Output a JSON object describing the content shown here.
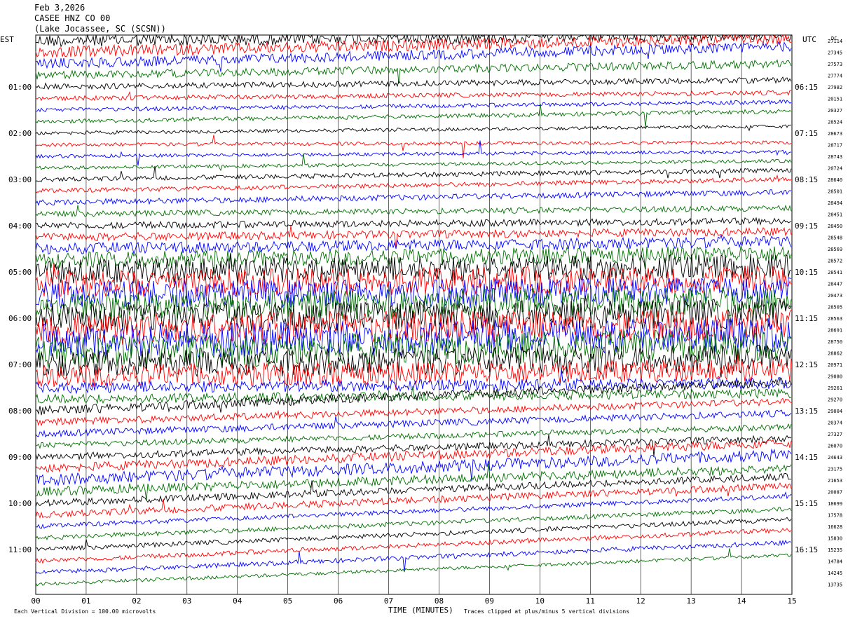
{
  "header": {
    "date": "Feb 3,2026",
    "station": "CASEE HNZ CO 00",
    "location": "(Lake Jocassee, SC (SCSN))"
  },
  "left_axis_label": "EST",
  "right_axis_label": "UTC",
  "right_corner_label": "DC",
  "footer": {
    "scale": "Each Vertical Division = 100.00 microvolts",
    "xlabel": "TIME (MINUTES)",
    "clip": "Traces clipped at plus/minus 5 vertical divisions"
  },
  "colors": {
    "trace_cycle": [
      "#000000",
      "#ff0000",
      "#0000ff",
      "#007000"
    ],
    "grid": "#000000"
  },
  "chart_data": {
    "type": "line",
    "title": "CASEE HNZ CO 00",
    "xlabel": "TIME (MINUTES)",
    "x_ticks": [
      "00",
      "01",
      "02",
      "03",
      "04",
      "05",
      "06",
      "07",
      "08",
      "09",
      "10",
      "11",
      "12",
      "13",
      "14",
      "15"
    ],
    "xlim": [
      0,
      15
    ],
    "rows_per_hour": 4,
    "left_hour_labels": [
      "01:00",
      "02:00",
      "03:00",
      "04:00",
      "05:00",
      "06:00",
      "07:00",
      "08:00",
      "09:00",
      "10:00",
      "11:00"
    ],
    "right_hour_labels": [
      "06:15",
      "07:15",
      "08:15",
      "09:15",
      "10:15",
      "11:15",
      "12:15",
      "13:15",
      "14:15",
      "15:15",
      "16:15"
    ],
    "dc_offsets": [
      "27114",
      "27345",
      "27573",
      "27774",
      "27982",
      "20151",
      "20327",
      "28524",
      "28673",
      "28717",
      "28743",
      "20724",
      "28640",
      "28501",
      "28494",
      "28451",
      "28450",
      "28548",
      "28569",
      "28572",
      "28541",
      "28447",
      "20473",
      "28505",
      "28563",
      "28691",
      "28750",
      "28862",
      "20971",
      "29080",
      "29261",
      "29270",
      "29004",
      "20374",
      "27327",
      "26070",
      "24643",
      "23175",
      "21653",
      "20087",
      "18699",
      "17578",
      "16628",
      "15830",
      "15235",
      "14784",
      "14245",
      "13735"
    ],
    "trace_amplitude": [
      0.55,
      0.5,
      0.45,
      0.35,
      0.25,
      0.2,
      0.18,
      0.18,
      0.15,
      0.15,
      0.15,
      0.15,
      0.2,
      0.2,
      0.25,
      0.25,
      0.3,
      0.35,
      0.5,
      0.7,
      1.1,
      1.2,
      1.2,
      1.3,
      1.3,
      1.4,
      1.5,
      1.4,
      1.2,
      1.0,
      0.5,
      0.4,
      0.4,
      0.3,
      0.3,
      0.25,
      0.3,
      0.4,
      0.5,
      0.4,
      0.3,
      0.3,
      0.2,
      0.2,
      0.2,
      0.2,
      0.2,
      0.15
    ],
    "trace_slope_divisions": [
      0.5,
      1.2,
      1.5,
      1.0,
      0.6,
      0.5,
      0.7,
      0.9,
      0.6,
      0.2,
      0.4,
      0.6,
      0.8,
      1.0,
      0.9,
      0.5,
      0.4,
      0.5,
      0.6,
      0.6,
      0.5,
      0.4,
      0.4,
      0.5,
      0.4,
      0.5,
      0.6,
      0.7,
      0.5,
      0.5,
      0.4,
      0.5,
      2.5,
      1.8,
      1.8,
      1.6,
      1.6,
      2.2,
      2.2,
      2.0,
      2.3,
      2.5,
      2.6,
      2.5,
      2.6,
      2.7,
      2.6,
      2.5
    ]
  }
}
